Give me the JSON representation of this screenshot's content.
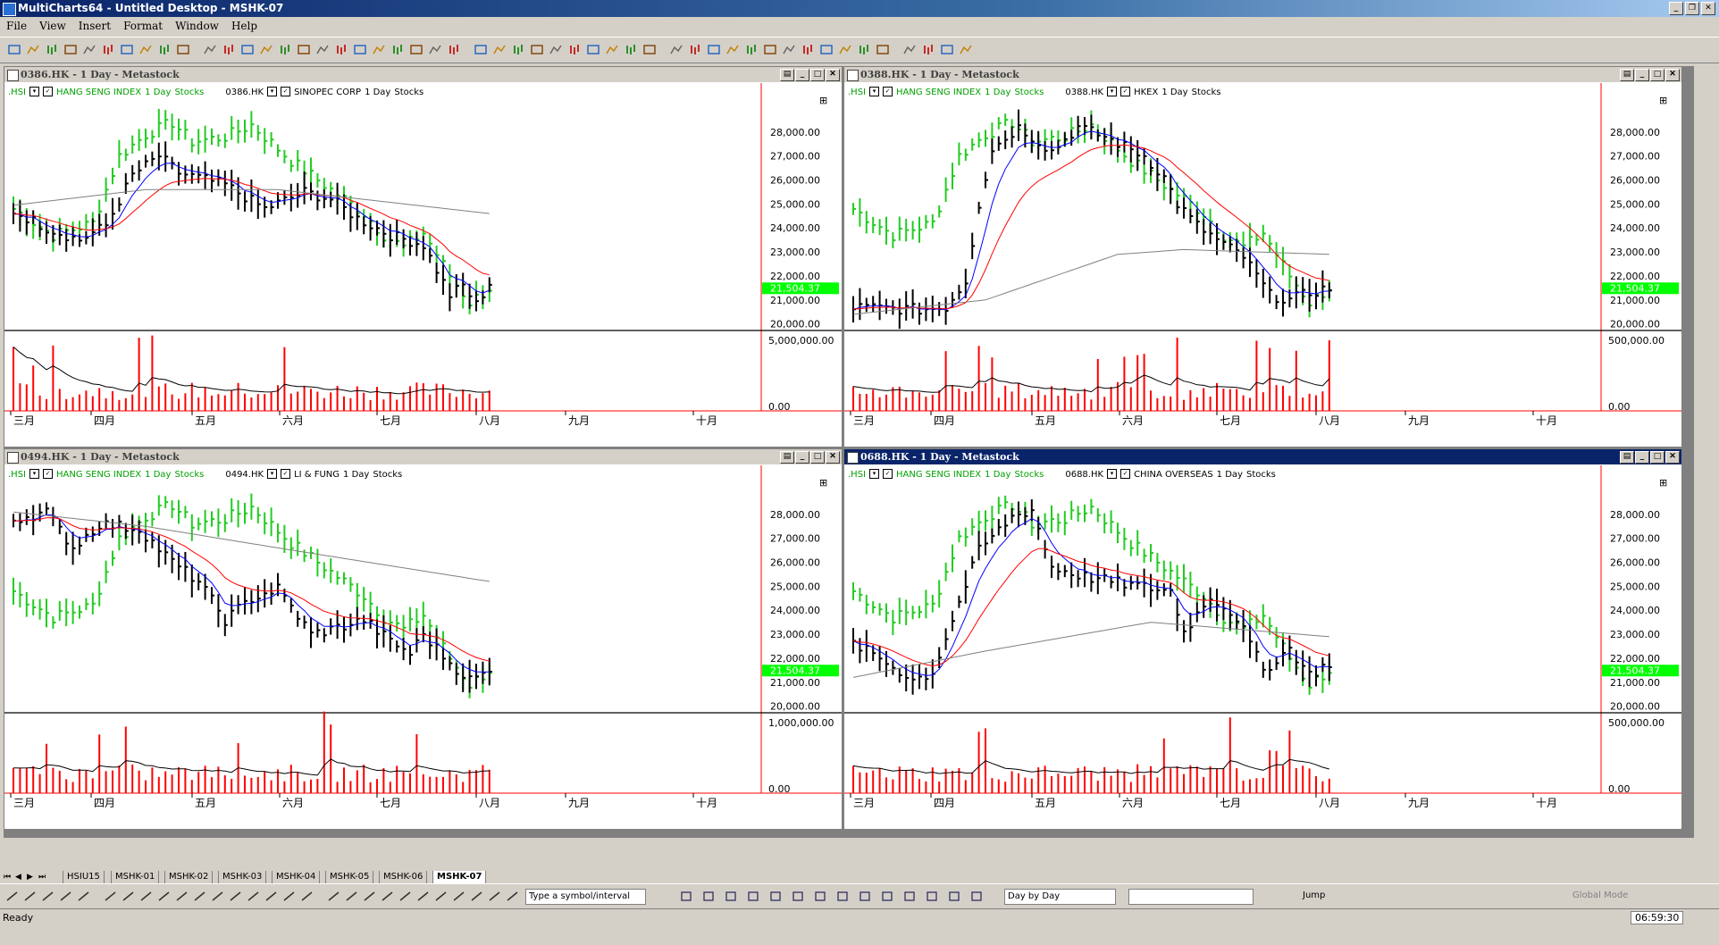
{
  "app": {
    "title": "MultiCharts64 - Untitled Desktop - MSHK-07"
  },
  "menu": [
    "File",
    "View",
    "Insert",
    "Format",
    "Window",
    "Help"
  ],
  "months": [
    "三月",
    "四月",
    "五月",
    "六月",
    "七月",
    "八月",
    "九月",
    "十月"
  ],
  "price_labels": [
    "28,000.00",
    "27,000.00",
    "26,000.00",
    "25,000.00",
    "24,000.00",
    "23,000.00",
    "22,000.00",
    "21,000.00",
    "20,000.00"
  ],
  "current_hsi": "21,504.37",
  "colors": {
    "hsi": "#22cc22",
    "stock": "#000000",
    "ma_fast": "#0000ff",
    "ma_mid": "#ff0000",
    "ma_slow": "#808080",
    "volume": "#ff0000",
    "axis_line": "#ff0000",
    "price_tag_bg": "#00ff00"
  },
  "panels": [
    {
      "id": "p1",
      "title": "0386.HK - 1 Day - Metastock",
      "active": false,
      "ticker": "0386.HK",
      "name": "SINOPEC CORP",
      "vol_top": "5,000,000.00",
      "vol_zero": "0.00",
      "legend_hsi": ".HSI",
      "legend_hsi_name": "HANG SENG INDEX",
      "legend_interval": "1 Day",
      "legend_type": "Stocks"
    },
    {
      "id": "p2",
      "title": "0388.HK - 1 Day - Metastock",
      "active": false,
      "ticker": "0388.HK",
      "name": "HKEX",
      "vol_top": "500,000.00",
      "vol_zero": "0.00",
      "legend_hsi": ".HSI",
      "legend_hsi_name": "HANG SENG INDEX",
      "legend_interval": "1 Day",
      "legend_type": "Stocks"
    },
    {
      "id": "p3",
      "title": "0494.HK - 1 Day - Metastock",
      "active": false,
      "ticker": "0494.HK",
      "name": "LI & FUNG",
      "vol_top": "1,000,000.00",
      "vol_zero": "0.00",
      "legend_hsi": ".HSI",
      "legend_hsi_name": "HANG SENG INDEX",
      "legend_interval": "1 Day",
      "legend_type": "Stocks"
    },
    {
      "id": "p4",
      "title": "0688.HK - 1 Day - Metastock",
      "active": true,
      "ticker": "0688.HK",
      "name": "CHINA OVERSEAS",
      "vol_top": "500,000.00",
      "vol_zero": "0.00",
      "legend_hsi": ".HSI",
      "legend_hsi_name": "HANG SENG INDEX",
      "legend_interval": "1 Day",
      "legend_type": "Stocks"
    }
  ],
  "tabs": [
    "HSIU15",
    "MSHK-01",
    "MSHK-02",
    "MSHK-03",
    "MSHK-04",
    "MSHK-05",
    "MSHK-06",
    "MSHK-07"
  ],
  "active_tab": "MSHK-07",
  "bottom_toolbar": {
    "symbol_placeholder": "Type a symbol/interval",
    "resolution": "Day by Day",
    "jump": "Jump",
    "global_mode": "Global Mode"
  },
  "status": {
    "text": "Ready",
    "time": "06:59:30"
  }
}
